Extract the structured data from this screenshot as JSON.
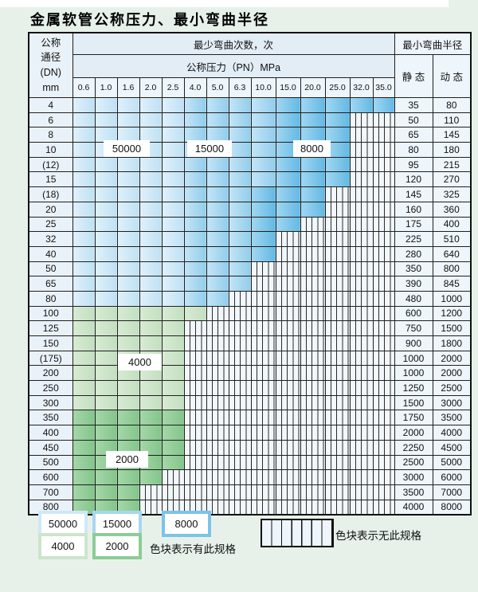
{
  "title": "金属软管公称压力、最小弯曲半径",
  "table": {
    "corner_header_lines": [
      "公称",
      "通径",
      "(DN)",
      "mm"
    ],
    "bend_times_header": "最少弯曲次数，次",
    "pressure_header": "公称压力（PN）MPa",
    "radius_header": "最小弯曲半径",
    "static_label": "静 态",
    "dynamic_label": "动 态",
    "pressure_columns": [
      "0.6",
      "1.0",
      "1.6",
      "2.0",
      "2.5",
      "4.0",
      "5.0",
      "6.3",
      "10.0",
      "15.0",
      "20.0",
      "25.0",
      "32.0",
      "35.0"
    ],
    "cell_codes": {
      "L": "50000",
      "M": "15000",
      "D": "8000",
      "G": "4000",
      "E": "2000",
      "X": "无此规格"
    },
    "rows": [
      {
        "dn": "4",
        "cells": "LLLLLMMMMDDDDD",
        "static": "35",
        "dynamic": "80"
      },
      {
        "dn": "6",
        "cells": "LLLLLMMMMDDDXX",
        "static": "50",
        "dynamic": "110"
      },
      {
        "dn": "8",
        "cells": "LLLLLMMMMDDDXX",
        "static": "65",
        "dynamic": "145"
      },
      {
        "dn": "10",
        "cells": "LLLLLMMMMDDDXX",
        "static": "80",
        "dynamic": "180"
      },
      {
        "dn": "(12)",
        "cells": "LLLLLMMMMDDDXX",
        "static": "95",
        "dynamic": "215"
      },
      {
        "dn": "15",
        "cells": "LLLLLMMMMDDDXX",
        "static": "120",
        "dynamic": "270"
      },
      {
        "dn": "(18)",
        "cells": "LLLLLMMMDDDXXX",
        "static": "145",
        "dynamic": "325"
      },
      {
        "dn": "20",
        "cells": "LLLLLMMMDDDXXX",
        "static": "160",
        "dynamic": "360"
      },
      {
        "dn": "25",
        "cells": "LLLLLMMMDDXXXX",
        "static": "175",
        "dynamic": "400"
      },
      {
        "dn": "32",
        "cells": "LLLLLMMMDXXXXX",
        "static": "225",
        "dynamic": "510"
      },
      {
        "dn": "40",
        "cells": "LLLLLMMMDXXXXX",
        "static": "280",
        "dynamic": "640"
      },
      {
        "dn": "50",
        "cells": "LLLLLMMMXXXXXX",
        "static": "350",
        "dynamic": "800"
      },
      {
        "dn": "65",
        "cells": "LLLLLMMMXXXXXX",
        "static": "390",
        "dynamic": "845"
      },
      {
        "dn": "80",
        "cells": "LLLLLMMXXXXXXX",
        "static": "480",
        "dynamic": "1000"
      },
      {
        "dn": "100",
        "cells": "GGGGGGXXXXXXXX",
        "static": "600",
        "dynamic": "1200"
      },
      {
        "dn": "125",
        "cells": "GGGGGXXXXXXXXX",
        "static": "750",
        "dynamic": "1500"
      },
      {
        "dn": "150",
        "cells": "GGGGGXXXXXXXXX",
        "static": "900",
        "dynamic": "1800"
      },
      {
        "dn": "(175)",
        "cells": "GGGGGXXXXXXXXX",
        "static": "1000",
        "dynamic": "2000"
      },
      {
        "dn": "200",
        "cells": "GGGGGXXXXXXXXX",
        "static": "1000",
        "dynamic": "2000"
      },
      {
        "dn": "250",
        "cells": "GGGGGXXXXXXXXX",
        "static": "1250",
        "dynamic": "2500"
      },
      {
        "dn": "300",
        "cells": "GGGGGXXXXXXXXX",
        "static": "1500",
        "dynamic": "3000"
      },
      {
        "dn": "350",
        "cells": "EEEEEXXXXXXXXX",
        "static": "1750",
        "dynamic": "3500"
      },
      {
        "dn": "400",
        "cells": "EEEEEXXXXXXXXX",
        "static": "2000",
        "dynamic": "4000"
      },
      {
        "dn": "450",
        "cells": "EEEEEXXXXXXXXX",
        "static": "2250",
        "dynamic": "4500"
      },
      {
        "dn": "500",
        "cells": "EEEEEXXXXXXXXX",
        "static": "2500",
        "dynamic": "5000"
      },
      {
        "dn": "600",
        "cells": "EEEEXXXXXXXXXX",
        "static": "3000",
        "dynamic": "6000"
      },
      {
        "dn": "700",
        "cells": "EEEXXXXXXXXXXX",
        "static": "3500",
        "dynamic": "7000"
      },
      {
        "dn": "800",
        "cells": "EEEXXXXXXXXXXX",
        "static": "4000",
        "dynamic": "8000"
      }
    ]
  },
  "overlays": [
    {
      "text": "50000"
    },
    {
      "text": "15000"
    },
    {
      "text": "8000"
    },
    {
      "text": "4000"
    },
    {
      "text": "2000"
    }
  ],
  "legend": {
    "items": [
      {
        "label": "50000",
        "color": "#cfe8f7"
      },
      {
        "label": "15000",
        "color": "#a8d6ef"
      },
      {
        "label": "8000",
        "color": "#7cc3e8"
      },
      {
        "label": "4000",
        "color": "#cde5cb"
      },
      {
        "label": "2000",
        "color": "#8ccc96"
      }
    ],
    "has_spec_text": "色块表示有此规格",
    "no_spec_text": "色块表示无此规格"
  },
  "colors": {
    "page_bg": "#e7f1ea",
    "grid_line": "#1f1f1f",
    "header_bg": "#e2edf6",
    "label_cell_bg": "#eaf2f9",
    "hatch_bg": "#f1f7fb",
    "blue_50000": "#cfe8f7",
    "blue_15000": "#a8d6ef",
    "blue_8000": "#7cc3e8",
    "green_4000": "#cde5cb",
    "green_2000": "#8ccc96"
  }
}
